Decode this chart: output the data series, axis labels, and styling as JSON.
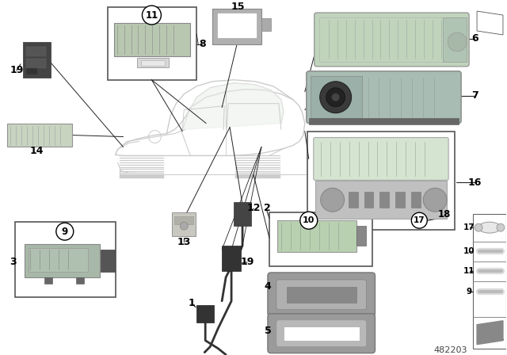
{
  "bg_color": "#ffffff",
  "diagram_number": "482203",
  "car_outline_color": "#cccccc",
  "car_fill_color": "#f5f5f5",
  "lamp_green": "#c8d8c0",
  "lamp_green2": "#b8ccc0",
  "lamp_gray": "#c0c8c0",
  "dark_connector": "#3a3a3a",
  "gray_part": "#a0a8a0",
  "line_color": "#222222",
  "label_font": 8,
  "circled_font": 9
}
